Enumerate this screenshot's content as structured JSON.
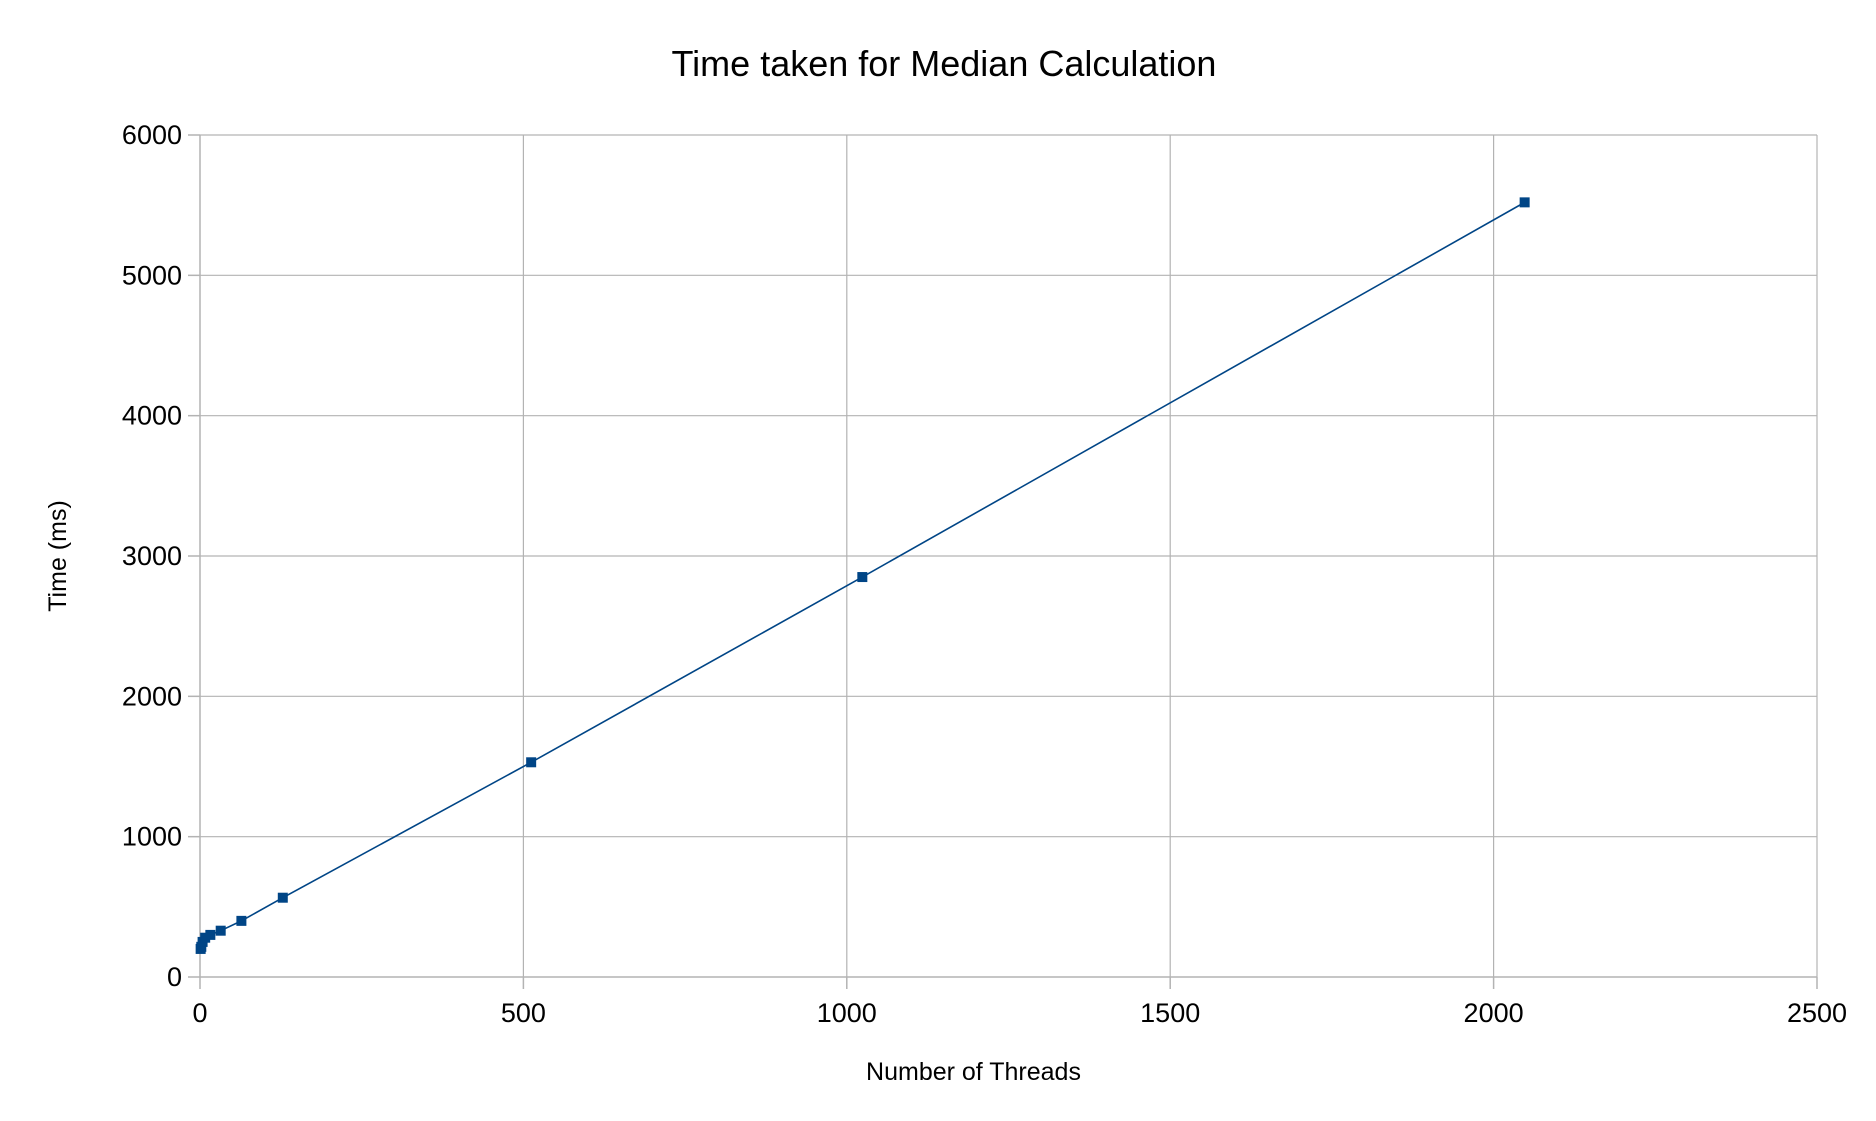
{
  "chart_data": {
    "type": "line",
    "title": "Time taken for Median Calculation",
    "xlabel": "Number of Threads",
    "ylabel": "Time (ms)",
    "xlim": [
      0,
      2500
    ],
    "ylim": [
      0,
      6000
    ],
    "x_ticks": [
      0,
      500,
      1000,
      1500,
      2000,
      2500
    ],
    "y_ticks": [
      0,
      1000,
      2000,
      3000,
      4000,
      5000,
      6000
    ],
    "grid": true,
    "legend": "none",
    "series": [
      {
        "color": "#004586",
        "marker": "square",
        "x": [
          1,
          2,
          4,
          8,
          16,
          32,
          64,
          128,
          512,
          1024,
          2048
        ],
        "y": [
          200,
          215,
          250,
          280,
          300,
          330,
          400,
          565,
          1530,
          2850,
          5520
        ]
      }
    ]
  }
}
